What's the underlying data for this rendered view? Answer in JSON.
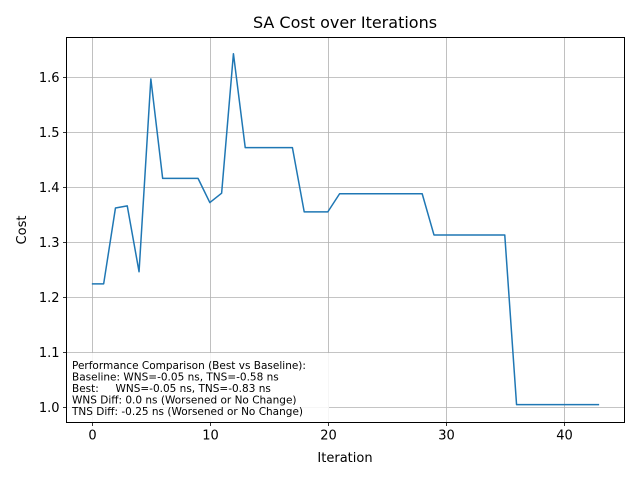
{
  "chart_data": {
    "type": "line",
    "title": "SA Cost over Iterations",
    "xlabel": "Iteration",
    "ylabel": "Cost",
    "xlim": [
      -2.15,
      45.15
    ],
    "ylim": [
      0.9715,
      1.6725
    ],
    "xticks": [
      0,
      10,
      20,
      30,
      40
    ],
    "yticks": [
      1.0,
      1.1,
      1.2,
      1.3,
      1.4,
      1.5,
      1.6
    ],
    "grid": true,
    "line_color": "#1f77b4",
    "series": [
      {
        "x": [
          0,
          1,
          2,
          3,
          4,
          5,
          6,
          7,
          8,
          9,
          10,
          11,
          12,
          13,
          14,
          15,
          16,
          17,
          18,
          19,
          20,
          21,
          22,
          23,
          24,
          25,
          26,
          27,
          28,
          29,
          30,
          31,
          32,
          33,
          34,
          35,
          36,
          37,
          38,
          39,
          40,
          41,
          42,
          43
        ],
        "values": [
          1.224,
          1.224,
          1.362,
          1.366,
          1.246,
          1.597,
          1.416,
          1.416,
          1.416,
          1.416,
          1.372,
          1.389,
          1.643,
          1.472,
          1.472,
          1.472,
          1.472,
          1.472,
          1.355,
          1.355,
          1.355,
          1.388,
          1.388,
          1.388,
          1.388,
          1.388,
          1.388,
          1.388,
          1.388,
          1.313,
          1.313,
          1.313,
          1.313,
          1.313,
          1.313,
          1.313,
          1.004,
          1.004,
          1.004,
          1.004,
          1.004,
          1.004,
          1.004,
          1.004
        ]
      }
    ],
    "annotation": [
      "Performance Comparison (Best vs Baseline):",
      "Baseline: WNS=-0.05 ns, TNS=-0.58 ns",
      "Best:     WNS=-0.05 ns, TNS=-0.83 ns",
      "WNS Diff: 0.0 ns (Worsened or No Change)",
      "TNS Diff: -0.25 ns (Worsened or No Change)"
    ]
  }
}
